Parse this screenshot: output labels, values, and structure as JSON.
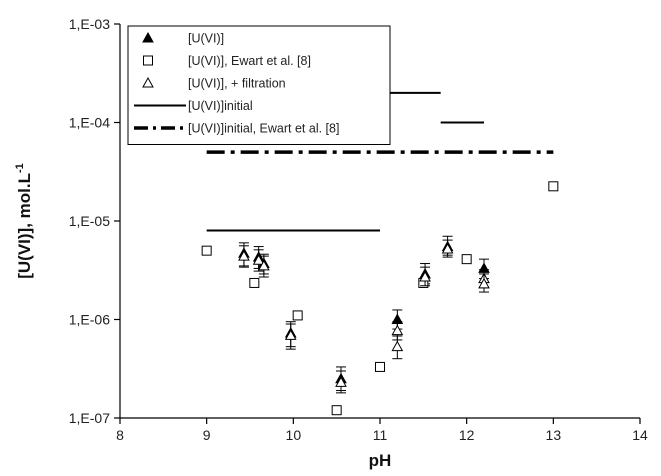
{
  "chart_data": {
    "type": "scatter",
    "title": "",
    "xlabel": "pH",
    "ylabel": "[U(VI)], mol.L",
    "ylabel_superscript": "-1",
    "xlim": [
      8,
      14
    ],
    "ylim": [
      1e-07,
      0.001
    ],
    "yscale": "log",
    "grid": false,
    "legend_position": "top-left",
    "x_ticks": [
      "8",
      "9",
      "10",
      "11",
      "12",
      "13",
      "14"
    ],
    "y_ticks": [
      "1,E-07",
      "1,E-06",
      "1,E-05",
      "1,E-04",
      "1,E-03"
    ],
    "series": [
      {
        "name": "[U(VI)]",
        "marker": "filled-triangle",
        "points": [
          {
            "x": 9.43,
            "y": 4.7e-06,
            "err": [
              3.5e-06,
              6e-06
            ]
          },
          {
            "x": 9.6,
            "y": 4.3e-06,
            "err": [
              3.3e-06,
              5.5e-06
            ]
          },
          {
            "x": 9.66,
            "y": 3.7e-06,
            "err": [
              2.9e-06,
              4.6e-06
            ]
          },
          {
            "x": 9.97,
            "y": 7.3e-07,
            "err": [
              5.3e-07,
              9.5e-07
            ]
          },
          {
            "x": 10.55,
            "y": 2.5e-07,
            "err": [
              1.9e-07,
              3.3e-07
            ]
          },
          {
            "x": 11.2,
            "y": 1e-06,
            "err": [
              8e-07,
              1.25e-06
            ]
          },
          {
            "x": 11.52,
            "y": 2.9e-06,
            "err": [
              2.3e-06,
              3.7e-06
            ]
          },
          {
            "x": 11.78,
            "y": 5.5e-06,
            "err": [
              4.5e-06,
              7e-06
            ]
          },
          {
            "x": 12.2,
            "y": 3.3e-06,
            "err": [
              2.6e-06,
              4.1e-06
            ]
          }
        ]
      },
      {
        "name": "[U(VI)], Ewart et al. [8]",
        "marker": "open-square",
        "points": [
          {
            "x": 9.0,
            "y": 5e-06
          },
          {
            "x": 9.55,
            "y": 2.35e-06
          },
          {
            "x": 10.05,
            "y": 1.1e-06
          },
          {
            "x": 10.5,
            "y": 1.2e-07
          },
          {
            "x": 11.0,
            "y": 3.3e-07
          },
          {
            "x": 11.5,
            "y": 2.35e-06
          },
          {
            "x": 12.0,
            "y": 4.1e-06
          },
          {
            "x": 13.0,
            "y": 2.25e-05
          }
        ]
      },
      {
        "name": "[U(VI)], + filtration",
        "marker": "open-triangle",
        "points": [
          {
            "x": 9.43,
            "y": 4.4e-06,
            "err": [
              3.4e-06,
              5.6e-06
            ]
          },
          {
            "x": 9.6,
            "y": 4e-06,
            "err": [
              3.1e-06,
              5.1e-06
            ]
          },
          {
            "x": 9.66,
            "y": 3.5e-06,
            "err": [
              2.7e-06,
              4.4e-06
            ]
          },
          {
            "x": 9.97,
            "y": 6.9e-07,
            "err": [
              5e-07,
              9e-07
            ]
          },
          {
            "x": 10.55,
            "y": 2.3e-07,
            "err": [
              1.8e-07,
              3e-07
            ]
          },
          {
            "x": 11.2,
            "y": 7.7e-07,
            "err": [
              6.2e-07,
              9.5e-07
            ]
          },
          {
            "x": 11.2,
            "y": 5.3e-07,
            "err": [
              4e-07,
              6.8e-07
            ]
          },
          {
            "x": 11.52,
            "y": 2.7e-06,
            "err": [
              2.2e-06,
              3.4e-06
            ]
          },
          {
            "x": 11.78,
            "y": 5.2e-06,
            "err": [
              4.3e-06,
              6.4e-06
            ]
          },
          {
            "x": 12.2,
            "y": 2.6e-06,
            "err": [
              2.1e-06,
              3.2e-06
            ]
          },
          {
            "x": 12.2,
            "y": 2.3e-06,
            "err": [
              1.9e-06,
              2.9e-06
            ]
          }
        ]
      },
      {
        "name": "[U(VI)]initial",
        "marker": "solid-line",
        "segments": [
          {
            "x": [
              9.0,
              11.0
            ],
            "y": 8e-06
          },
          {
            "x": [
              11.0,
              11.7
            ],
            "y": 0.0002
          },
          {
            "x": [
              11.7,
              12.2
            ],
            "y": 0.0001
          }
        ]
      },
      {
        "name": "[U(VI)]initial, Ewart et al. [8]",
        "marker": "dash-dot-line",
        "segments": [
          {
            "x": [
              9.0,
              13.0
            ],
            "y": 5e-05
          }
        ]
      }
    ]
  },
  "colors": {
    "ink": "#000000",
    "background": "#ffffff"
  }
}
